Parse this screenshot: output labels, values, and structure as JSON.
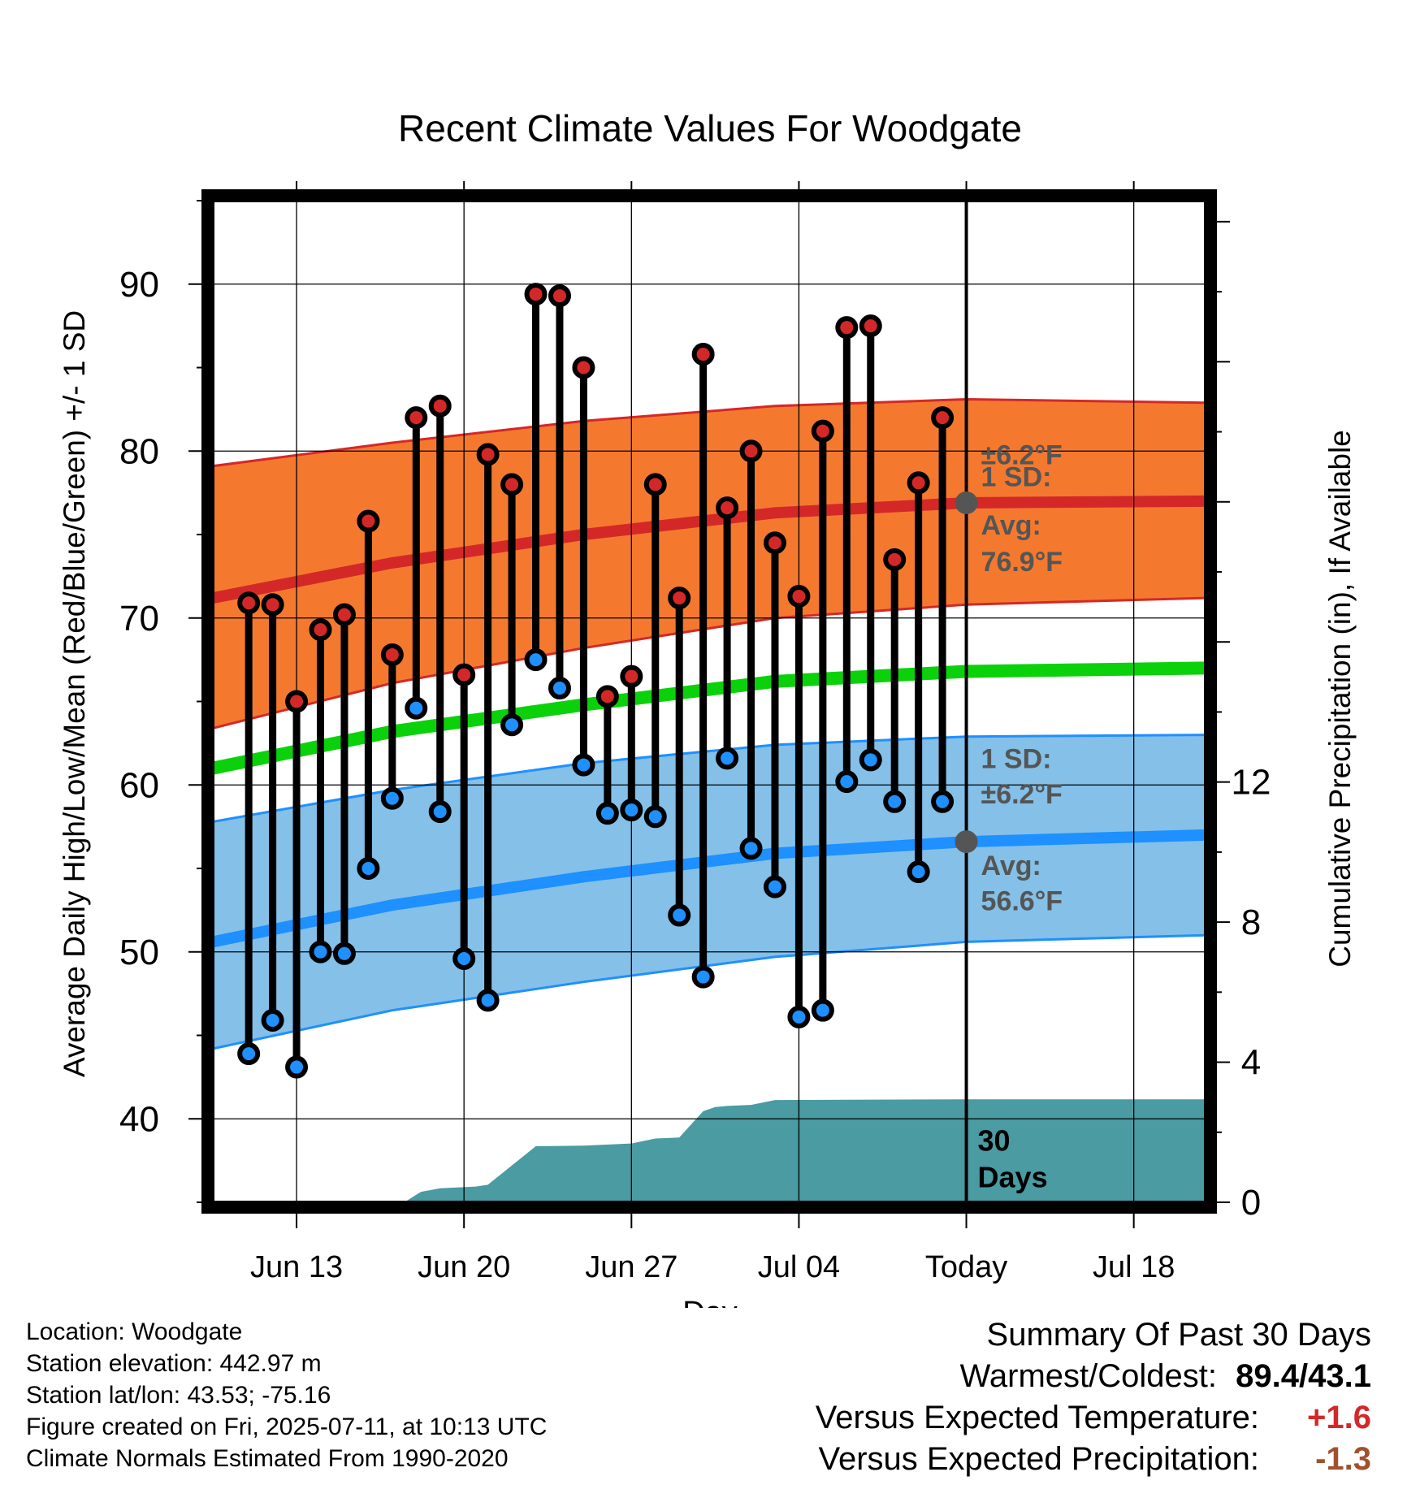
{
  "chart_data": {
    "type": "line",
    "title": "Recent Climate Values For Woodgate",
    "xlabel": "Day",
    "ylabel": "Average Daily High/Low/Mean (Red/Blue/Green) +/- 1 SD",
    "ylabel_right": "Cumulative Precipitation (in), If Available",
    "ylim": [
      35,
      95
    ],
    "ylim_right": [
      0,
      28.6
    ],
    "y_ticks": [
      40,
      50,
      60,
      70,
      80,
      90
    ],
    "y_ticks_right": [
      0,
      4,
      8,
      12
    ],
    "x_tick_labels": [
      "Jun 13",
      "Jun 20",
      "Jun 27",
      "Jul 04",
      "Today",
      "Jul 18"
    ],
    "x_tick_days": [
      3,
      10,
      17,
      24,
      31,
      38
    ],
    "x_range_days": [
      -0.5,
      41
    ],
    "grid": true,
    "daily_records": [
      {
        "day": 1,
        "high": 70.9,
        "low": 43.9
      },
      {
        "day": 2,
        "high": 70.8,
        "low": 45.9
      },
      {
        "day": 3,
        "high": 65.0,
        "low": 43.1
      },
      {
        "day": 4,
        "high": 69.3,
        "low": 50.0
      },
      {
        "day": 5,
        "high": 70.2,
        "low": 49.9
      },
      {
        "day": 6,
        "high": 75.8,
        "low": 55.0
      },
      {
        "day": 7,
        "high": 67.8,
        "low": 59.2
      },
      {
        "day": 8,
        "high": 82.0,
        "low": 64.6
      },
      {
        "day": 9,
        "high": 82.7,
        "low": 58.4
      },
      {
        "day": 10,
        "high": 66.6,
        "low": 49.6
      },
      {
        "day": 11,
        "high": 79.8,
        "low": 47.1
      },
      {
        "day": 12,
        "high": 78.0,
        "low": 63.6
      },
      {
        "day": 13,
        "high": 89.4,
        "low": 67.5
      },
      {
        "day": 14,
        "high": 89.3,
        "low": 65.8
      },
      {
        "day": 15,
        "high": 85.0,
        "low": 61.2
      },
      {
        "day": 16,
        "high": 65.3,
        "low": 58.3
      },
      {
        "day": 17,
        "high": 66.5,
        "low": 58.5
      },
      {
        "day": 18,
        "high": 78.0,
        "low": 58.1
      },
      {
        "day": 19,
        "high": 71.2,
        "low": 52.2
      },
      {
        "day": 20,
        "high": 85.8,
        "low": 48.5
      },
      {
        "day": 21,
        "high": 76.6,
        "low": 61.6
      },
      {
        "day": 22,
        "high": 80.0,
        "low": 56.2
      },
      {
        "day": 23,
        "high": 74.5,
        "low": 53.9
      },
      {
        "day": 24,
        "high": 71.3,
        "low": 46.1
      },
      {
        "day": 25,
        "high": 81.2,
        "low": 46.5
      },
      {
        "day": 26,
        "high": 87.4,
        "low": 60.2
      },
      {
        "day": 27,
        "high": 87.5,
        "low": 61.5
      },
      {
        "day": 28,
        "high": 73.5,
        "low": 59.0
      },
      {
        "day": 29,
        "high": 78.1,
        "low": 54.8
      },
      {
        "day": 30,
        "high": 82.0,
        "low": 59.0
      }
    ],
    "normals": {
      "x_days": [
        -0.5,
        7,
        15,
        23,
        31,
        41
      ],
      "high_mean": [
        71.2,
        73.3,
        75.0,
        76.3,
        76.9,
        77.0
      ],
      "high_upper": [
        79.1,
        80.5,
        81.8,
        82.7,
        83.1,
        82.9
      ],
      "high_lower": [
        63.4,
        66.1,
        68.2,
        70.0,
        70.8,
        71.2
      ],
      "low_mean": [
        50.6,
        52.8,
        54.5,
        55.9,
        56.6,
        57.0
      ],
      "low_upper": [
        57.8,
        59.7,
        61.3,
        62.4,
        62.9,
        63.0
      ],
      "low_lower": [
        44.2,
        46.5,
        48.2,
        49.7,
        50.6,
        51.0
      ],
      "mean": [
        61.0,
        63.2,
        64.8,
        66.2,
        66.8,
        67.0
      ]
    },
    "precipitation": {
      "x_days": [
        -0.5,
        7.5,
        8.2,
        9,
        10.5,
        11,
        13,
        15,
        17,
        18,
        19,
        20,
        20.5,
        21,
        22,
        23,
        26,
        31,
        41
      ],
      "values": [
        0,
        0,
        0.3,
        0.4,
        0.45,
        0.5,
        1.6,
        1.62,
        1.68,
        1.82,
        1.85,
        2.6,
        2.72,
        2.75,
        2.78,
        2.92,
        2.93,
        2.94,
        2.94
      ]
    },
    "annotations": {
      "high_sd_label": "1 SD:",
      "high_sd_value": "±6.2°F",
      "high_avg_label": "Avg:",
      "high_avg_value": "76.9°F",
      "low_sd_label": "1 SD:",
      "low_sd_value": "±6.2°F",
      "low_avg_label": "Avg:",
      "low_avg_value": "56.6°F",
      "period_label_1": "30",
      "period_label_2": "Days",
      "high_avg_marker": 76.9,
      "low_avg_marker": 56.6
    },
    "colors": {
      "high_band": "#f4792f",
      "high_line": "#d42828",
      "low_band": "#84c0e8",
      "low_line": "#1e90ff",
      "mean_line": "#0bd10b",
      "precip": "#4a9ba2",
      "high_dot": "#d42828",
      "low_dot": "#1e90ff",
      "annotation_text": "#555555"
    }
  },
  "location": {
    "location_label": "Location: Woodgate",
    "elevation_label": "Station elevation: 442.97 m",
    "latlon_label": "Station lat/lon: 43.53; -75.16",
    "created_label": "Figure created on Fri, 2025-07-11, at 10:13 UTC",
    "normals_label": "Climate Normals Estimated From 1990-2020"
  },
  "summary": {
    "heading": "Summary Of Past 30 Days",
    "warmest_coldest_label": "Warmest/Coldest:",
    "warmest_coldest_value": "89.4/43.1",
    "temp_label": "Versus Expected Temperature:",
    "temp_value": "+1.6",
    "temp_color": "#d42828",
    "precip_label": "Versus Expected Precipitation:",
    "precip_value": "-1.3",
    "precip_color": "#a0522d"
  }
}
